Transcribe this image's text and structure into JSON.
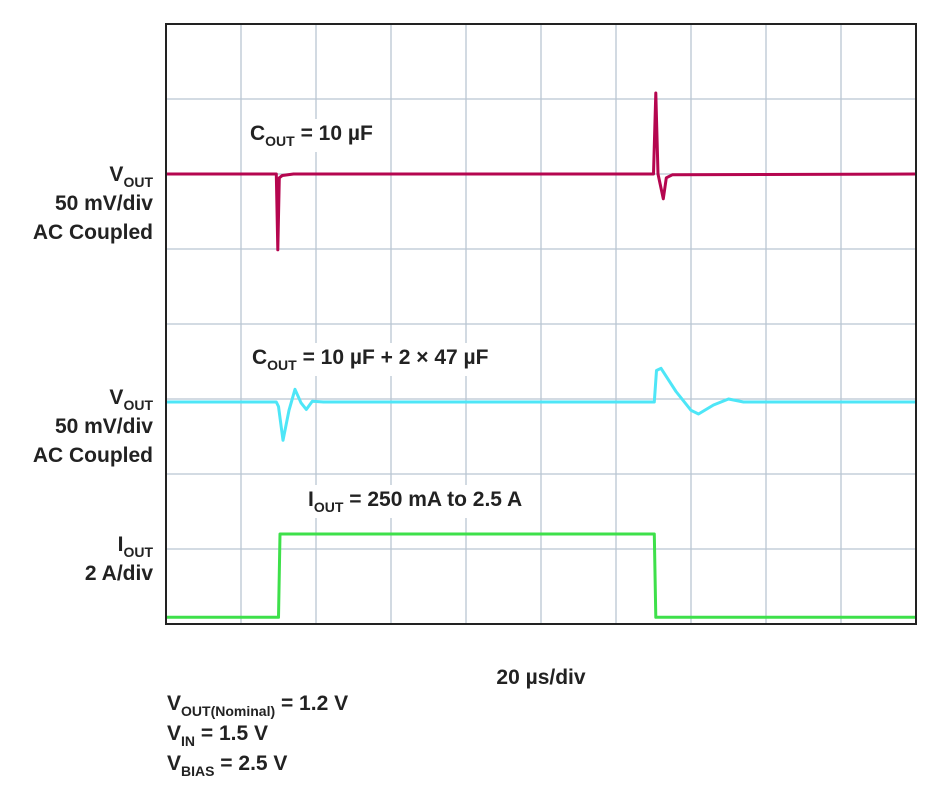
{
  "chart_data": {
    "type": "line",
    "xlim": [
      0,
      10
    ],
    "ylim": [
      0,
      8
    ],
    "xticks": [
      0,
      1,
      2,
      3,
      4,
      5,
      6,
      7,
      8,
      9,
      10
    ],
    "yticks": [
      0,
      1,
      2,
      3,
      4,
      5,
      6,
      7,
      8
    ],
    "grid": true,
    "series": [
      {
        "color": "#b5064f",
        "x": [
          0,
          1.47,
          1.49,
          1.51,
          1.55,
          1.7,
          6.5,
          6.53,
          6.56,
          6.63,
          6.67,
          6.75,
          10
        ],
        "values": [
          6.0,
          6.0,
          4.99,
          5.95,
          5.98,
          6.0,
          6.0,
          7.08,
          6.0,
          5.67,
          5.95,
          5.99,
          6.0
        ]
      },
      {
        "color": "#4ee6f7",
        "x": [
          0,
          1.47,
          1.5,
          1.56,
          1.64,
          1.72,
          1.8,
          1.87,
          1.95,
          2.1,
          6.51,
          6.54,
          6.6,
          6.8,
          7.0,
          7.1,
          7.3,
          7.5,
          7.7,
          10
        ],
        "values": [
          2.96,
          2.96,
          2.9,
          2.45,
          2.85,
          3.13,
          2.95,
          2.86,
          2.97,
          2.96,
          2.96,
          3.38,
          3.41,
          3.1,
          2.85,
          2.8,
          2.92,
          3.0,
          2.96,
          2.96
        ]
      },
      {
        "color": "#3ee04a",
        "x": [
          0,
          1.5,
          1.52,
          6.51,
          6.53,
          10
        ],
        "values": [
          0.09,
          0.09,
          1.2,
          1.2,
          0.09,
          0.09
        ]
      }
    ],
    "channel_labels": [
      [
        {
          "base": "V",
          "sub": "OUT"
        },
        {
          "base": "50 mV/div"
        },
        {
          "base": "AC Coupled"
        }
      ],
      [
        {
          "base": "V",
          "sub": "OUT"
        },
        {
          "base": "50 mV/div"
        },
        {
          "base": "AC Coupled"
        }
      ],
      [
        {
          "base": "I",
          "sub": "OUT"
        },
        {
          "base": "2 A/div"
        }
      ]
    ],
    "annotations": [
      {
        "base": "C",
        "sub": "OUT",
        "rest": " = 10 µF"
      },
      {
        "base": "C",
        "sub": "OUT",
        "rest": " = 10 µF + 2 × 47 µF"
      },
      {
        "base": "I",
        "sub": "OUT",
        "rest": " = 250 mA to 2.5 A"
      }
    ],
    "x_label": "20 µs/div",
    "conditions": [
      {
        "base": "V",
        "sub": "OUT(Nominal)",
        "rest": " = 1.2 V"
      },
      {
        "base": "V",
        "sub": "IN",
        "rest": " = 1.5 V"
      },
      {
        "base": "V",
        "sub": "BIAS",
        "rest": " = 2.5 V"
      }
    ]
  }
}
